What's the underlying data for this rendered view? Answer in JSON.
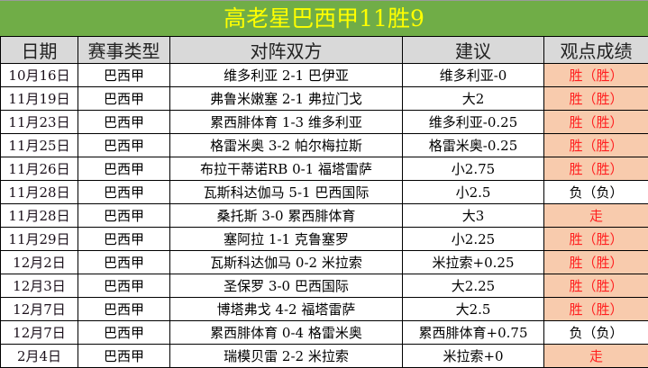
{
  "title": "高老星巴西甲11胜9",
  "headers": [
    "日期",
    "赛事类型",
    "对阵双方",
    "建议",
    "观点成绩"
  ],
  "colors": {
    "title_bg": "#70ad47",
    "title_text": "#ffff00",
    "header_bg": "#d9d9d9",
    "highlight_bg": "#f8cbad",
    "highlight_text": "#ff2020"
  },
  "rows": [
    {
      "date": "10月16日",
      "league": "巴西甲",
      "match": "维多利亚 2-1 巴伊亚",
      "tip": "维多利亚-0",
      "result": "胜（胜）",
      "hl": true
    },
    {
      "date": "11月19日",
      "league": "巴西甲",
      "match": "弗鲁米嫩塞 2-1 弗拉门戈",
      "tip": "大2",
      "result": "胜（胜）",
      "hl": true
    },
    {
      "date": "11月23日",
      "league": "巴西甲",
      "match": "累西腓体育 1-3 维多利亚",
      "tip": "维多利亚-0.25",
      "result": "胜（胜）",
      "hl": true
    },
    {
      "date": "11月25日",
      "league": "巴西甲",
      "match": "格雷米奥 3-2 帕尔梅拉斯",
      "tip": "格雷米奥-0.25",
      "result": "胜（胜）",
      "hl": true
    },
    {
      "date": "11月26日",
      "league": "巴西甲",
      "match": "布拉干蒂诺RB 0-1 福塔雷萨",
      "tip": "小2.75",
      "result": "胜（胜）",
      "hl": true
    },
    {
      "date": "11月28日",
      "league": "巴西甲",
      "match": "瓦斯科达伽马 5-1 巴西国际",
      "tip": "小2.5",
      "result": "负（负）",
      "hl": false
    },
    {
      "date": "11月28日",
      "league": "巴西甲",
      "match": "桑托斯 3-0 累西腓体育",
      "tip": "大3",
      "result": "走",
      "hl": true
    },
    {
      "date": "11月29日",
      "league": "巴西甲",
      "match": "塞阿拉 1-1 克鲁塞罗",
      "tip": "小2.25",
      "result": "胜（胜）",
      "hl": true
    },
    {
      "date": "12月2日",
      "league": "巴西甲",
      "match": "瓦斯科达伽马 0-2 米拉索",
      "tip": "米拉索+0.25",
      "result": "胜（胜）",
      "hl": true
    },
    {
      "date": "12月3日",
      "league": "巴西甲",
      "match": "圣保罗 3-0 巴西国际",
      "tip": "大2.25",
      "result": "胜（胜）",
      "hl": true
    },
    {
      "date": "12月7日",
      "league": "巴西甲",
      "match": "博塔弗戈 4-2 福塔雷萨",
      "tip": "大2.5",
      "result": "胜（胜）",
      "hl": true
    },
    {
      "date": "12月7日",
      "league": "巴西甲",
      "match": "累西腓体育 0-4 格雷米奥",
      "tip": "累西腓体育+0.75",
      "result": "负（负）",
      "hl": false
    },
    {
      "date": "2月4日",
      "league": "巴西甲",
      "match": "瑞模贝雷 2-2 米拉索",
      "tip": "米拉索+0",
      "result": "走",
      "hl": true
    }
  ]
}
